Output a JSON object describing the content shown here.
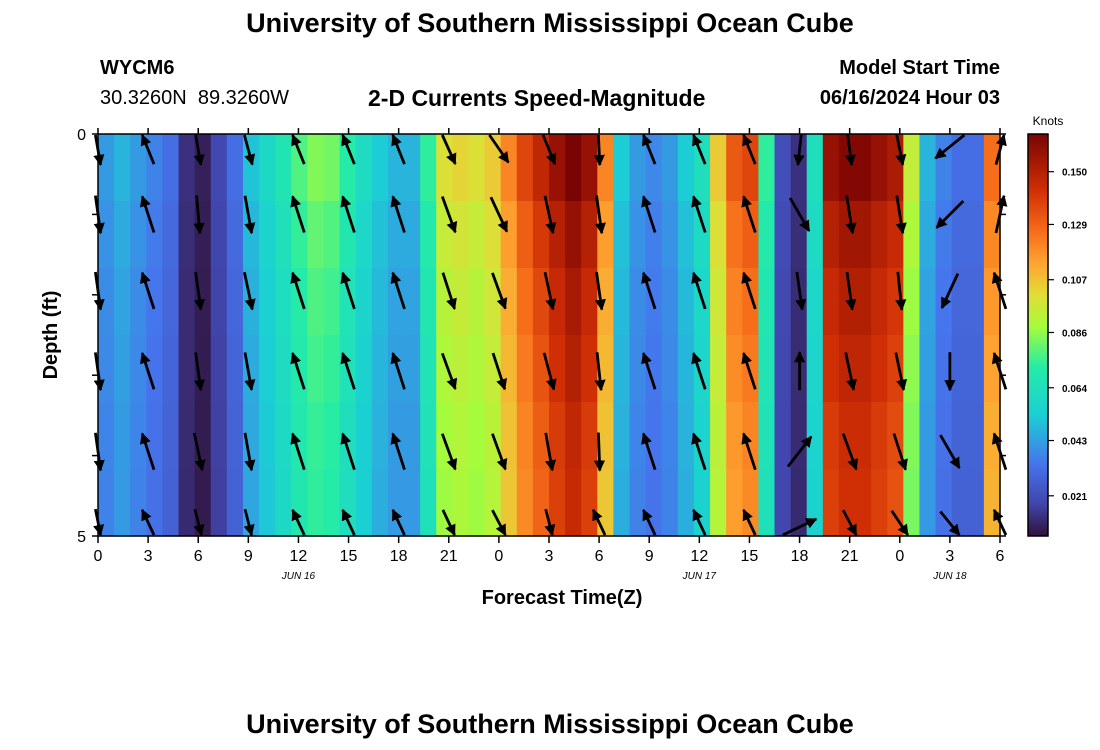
{
  "header": {
    "title": "University of Southern Mississippi Ocean Cube",
    "station_id": "WYCM6",
    "coordinates": "30.3260N  89.3260W",
    "subtitle": "2-D Currents Speed-Magnitude",
    "model_start_label": "Model Start Time",
    "model_start_value": "06/16/2024 Hour 03"
  },
  "footer": {
    "title": "University of Southern Mississippi Ocean Cube"
  },
  "chart_data": {
    "type": "heatmap",
    "title": "2-D Currents Speed-Magnitude",
    "xlabel": "Forecast Time(Z)",
    "ylabel": "Depth (ft)",
    "x_range_hours": [
      0,
      54
    ],
    "y_range_ft": [
      0,
      5
    ],
    "x_ticks": [
      {
        "h": 0,
        "label": "0"
      },
      {
        "h": 3,
        "label": "3"
      },
      {
        "h": 6,
        "label": "6"
      },
      {
        "h": 9,
        "label": "9"
      },
      {
        "h": 12,
        "label": "12"
      },
      {
        "h": 15,
        "label": "15"
      },
      {
        "h": 18,
        "label": "18"
      },
      {
        "h": 21,
        "label": "21"
      },
      {
        "h": 24,
        "label": "0"
      },
      {
        "h": 27,
        "label": "3"
      },
      {
        "h": 30,
        "label": "6"
      },
      {
        "h": 33,
        "label": "9"
      },
      {
        "h": 36,
        "label": "12"
      },
      {
        "h": 39,
        "label": "15"
      },
      {
        "h": 42,
        "label": "18"
      },
      {
        "h": 45,
        "label": "21"
      },
      {
        "h": 48,
        "label": "0"
      },
      {
        "h": 51,
        "label": "3"
      },
      {
        "h": 54,
        "label": "6"
      }
    ],
    "date_labels": [
      {
        "h": 12,
        "label": "JUN 16"
      },
      {
        "h": 36,
        "label": "JUN 17"
      },
      {
        "h": 51,
        "label": "JUN 18"
      }
    ],
    "y_ticks": [
      {
        "ft": 0,
        "label": "0"
      },
      {
        "ft": 1,
        "label": ""
      },
      {
        "ft": 2,
        "label": ""
      },
      {
        "ft": 3,
        "label": ""
      },
      {
        "ft": 4,
        "label": ""
      },
      {
        "ft": 5,
        "label": "5"
      }
    ],
    "colorbar": {
      "unit": "Knots",
      "range": [
        0.005,
        0.165
      ],
      "tick_labels": [
        "0.150",
        "0.129",
        "0.107",
        "0.086",
        "0.064",
        "0.043",
        "0.021"
      ],
      "tick_values": [
        0.15,
        0.129,
        0.107,
        0.086,
        0.064,
        0.043,
        0.021
      ]
    },
    "speed_by_hour": [
      0.04,
      0.045,
      0.04,
      0.035,
      0.03,
      0.012,
      0.008,
      0.018,
      0.03,
      0.048,
      0.056,
      0.064,
      0.074,
      0.08,
      0.078,
      0.068,
      0.058,
      0.05,
      0.045,
      0.045,
      0.07,
      0.095,
      0.098,
      0.095,
      0.1,
      0.115,
      0.13,
      0.14,
      0.15,
      0.158,
      0.15,
      0.115,
      0.05,
      0.04,
      0.036,
      0.04,
      0.05,
      0.06,
      0.1,
      0.125,
      0.13,
      0.07,
      0.02,
      0.012,
      0.06,
      0.15,
      0.155,
      0.155,
      0.15,
      0.145,
      0.09,
      0.045,
      0.035,
      0.03,
      0.03,
      0.12
    ],
    "depth_factor": [
      1.05,
      1.0,
      0.97,
      0.95,
      0.93,
      0.92
    ],
    "vector_rows_ft": [
      0.15,
      1.0,
      1.95,
      2.95,
      3.95,
      4.9
    ],
    "vector_times_h": [
      0,
      3,
      6,
      9,
      12,
      15,
      18,
      21,
      24,
      27,
      30,
      33,
      36,
      39,
      42,
      45,
      48,
      51,
      54
    ],
    "vectors_deg": [
      [
        172,
        -18,
        172,
        168,
        -18,
        -18,
        -18,
        160,
        150,
        162,
        178,
        -18,
        -18,
        -18,
        185,
        174,
        171,
        230,
        12
      ],
      [
        172,
        -18,
        175,
        170,
        -18,
        -18,
        -18,
        160,
        155,
        168,
        172,
        -18,
        -18,
        -18,
        150,
        171,
        171,
        225,
        12
      ],
      [
        172,
        -18,
        172,
        168,
        -18,
        -18,
        -18,
        162,
        160,
        168,
        172,
        -18,
        -18,
        -18,
        172,
        172,
        174,
        205,
        -18
      ],
      [
        172,
        -18,
        172,
        170,
        -18,
        -18,
        -18,
        160,
        162,
        165,
        174,
        -18,
        -18,
        -18,
        0,
        168,
        168,
        180,
        -18
      ],
      [
        172,
        -18,
        168,
        170,
        -18,
        -18,
        -18,
        160,
        160,
        170,
        178,
        -18,
        -18,
        -18,
        38,
        160,
        162,
        150,
        -18
      ],
      [
        172,
        -18,
        170,
        170,
        -18,
        -18,
        -18,
        162,
        160,
        170,
        -18,
        -18,
        -18,
        -18,
        62,
        160,
        155,
        150,
        -18
      ]
    ]
  }
}
